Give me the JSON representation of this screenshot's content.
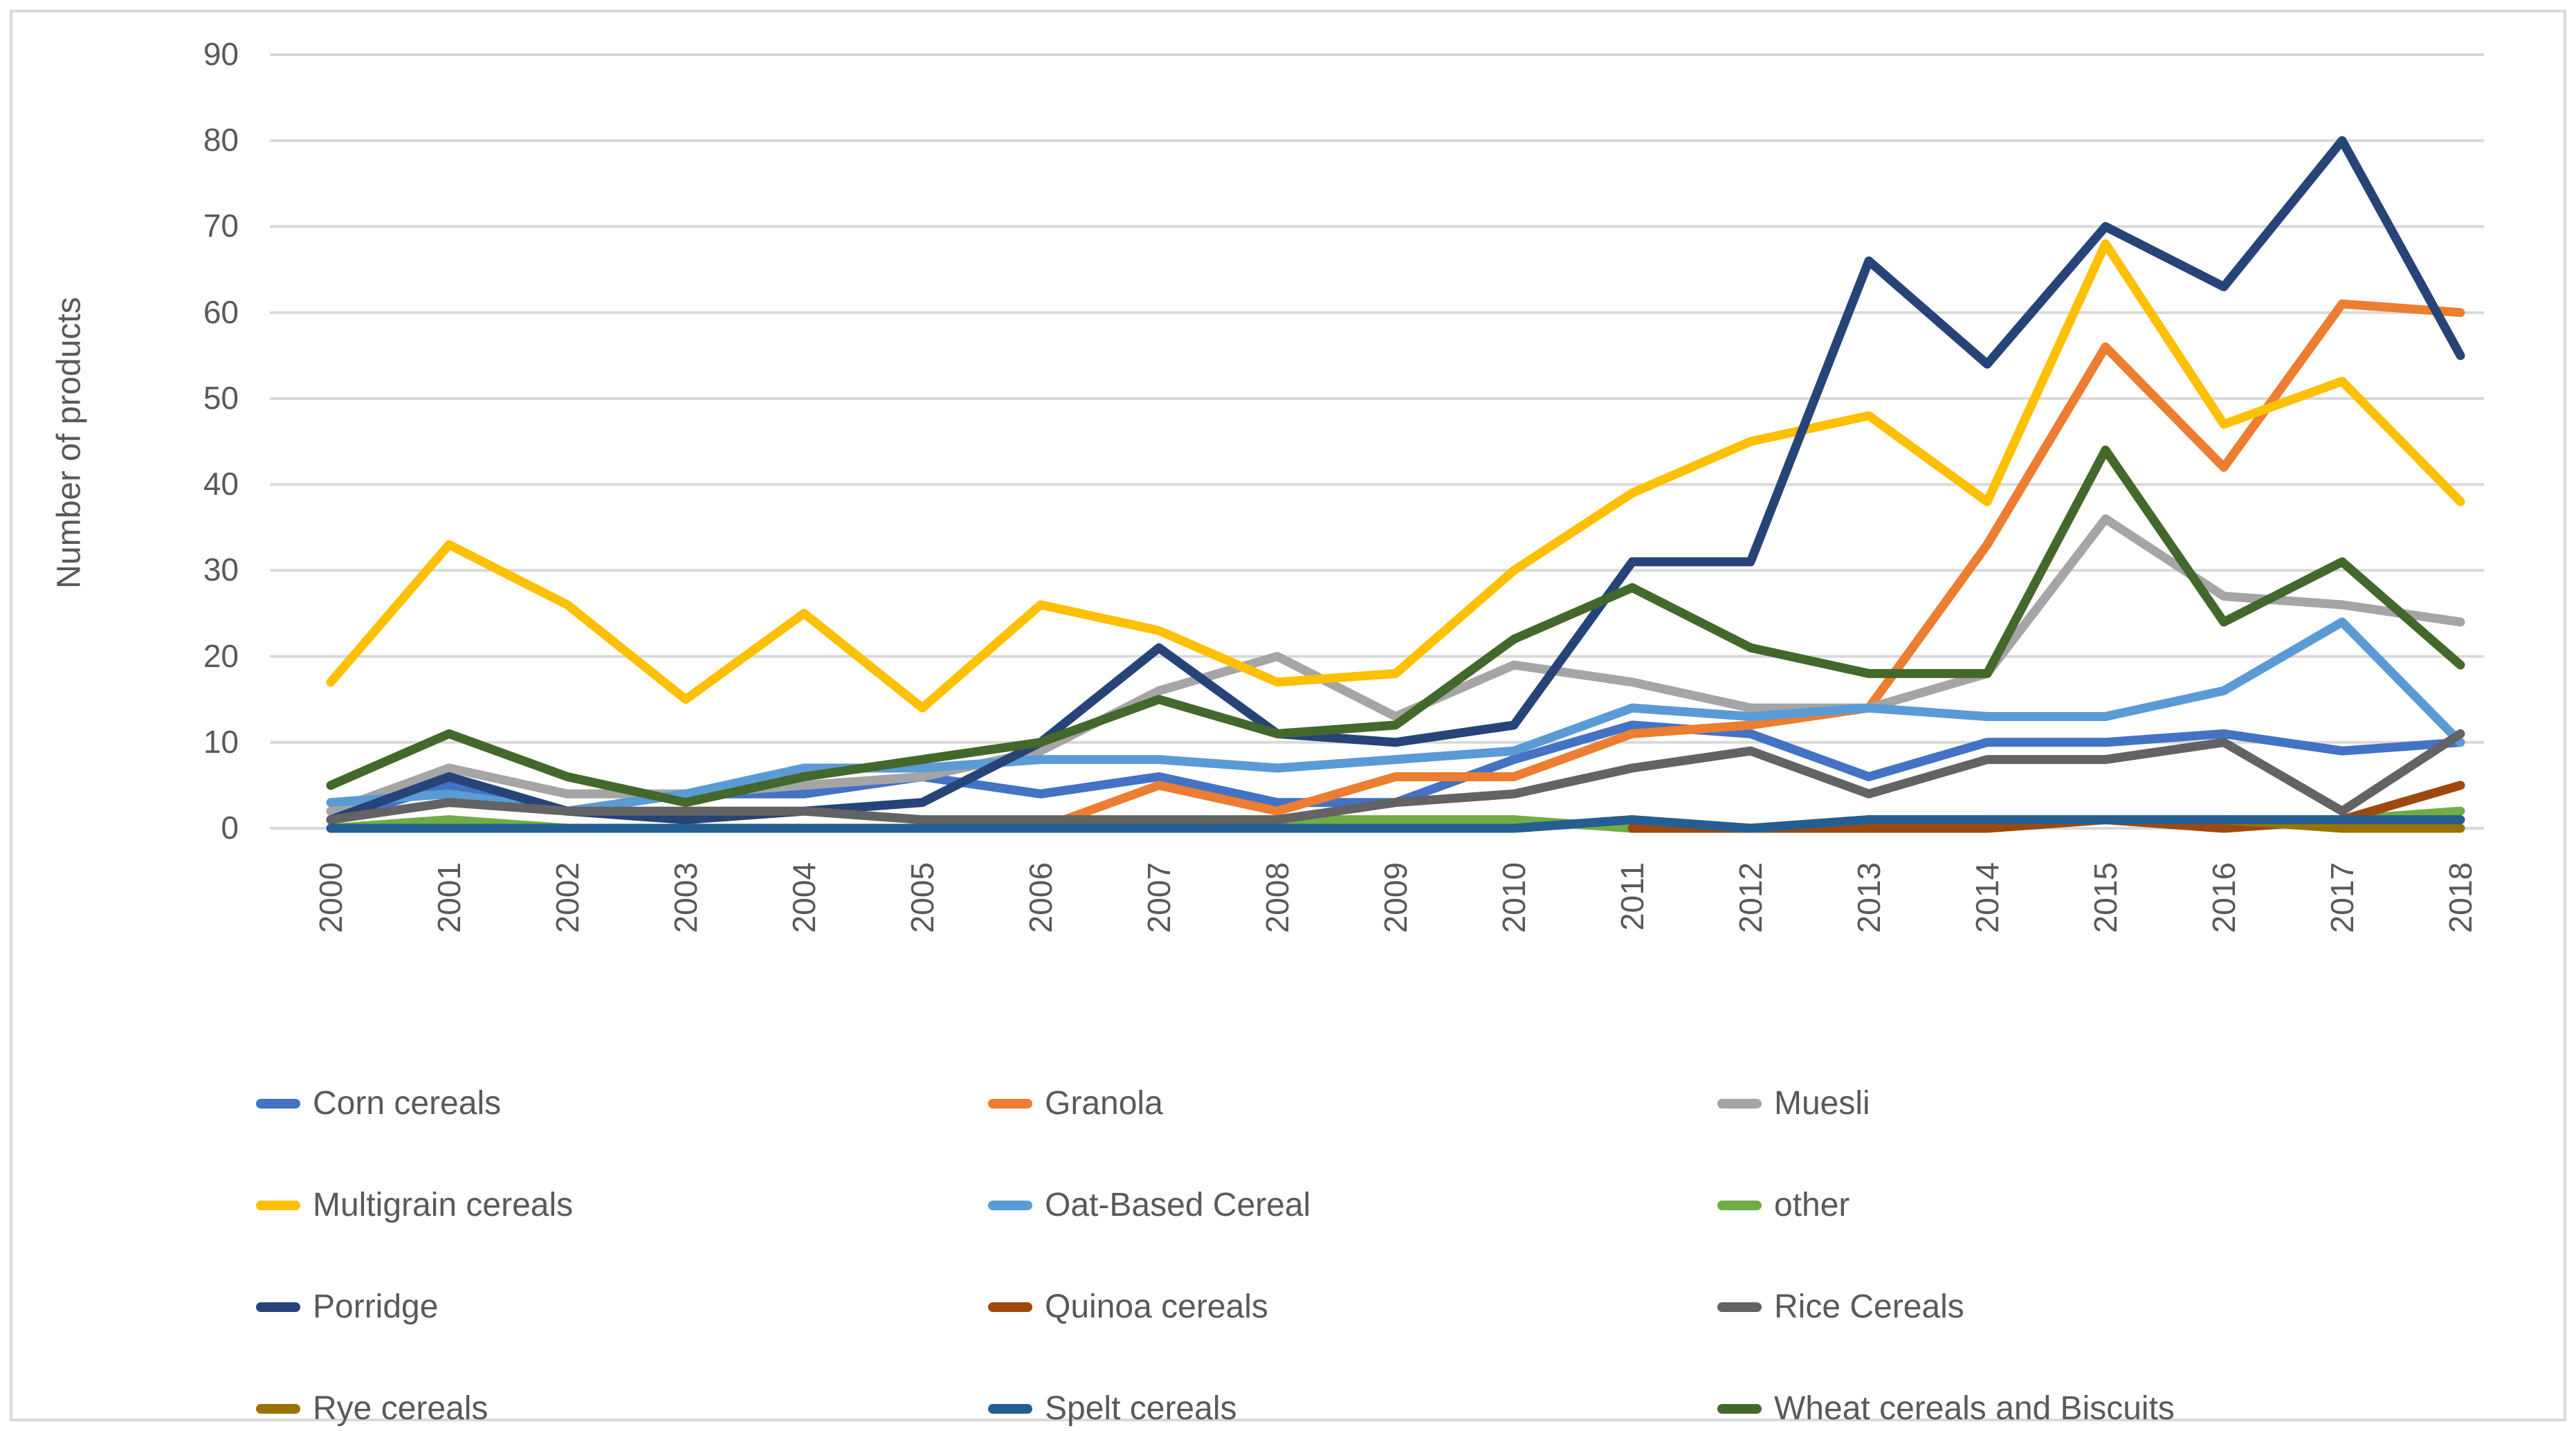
{
  "chart_data": {
    "type": "line",
    "title": "",
    "xlabel": "",
    "ylabel": "Number of products",
    "ylim": [
      0,
      90
    ],
    "ytick_step": 10,
    "grid": "horizontal",
    "legend_position": "bottom",
    "categories": [
      "2000",
      "2001",
      "2002",
      "2003",
      "2004",
      "2005",
      "2006",
      "2007",
      "2008",
      "2009",
      "2010",
      "2011",
      "2012",
      "2013",
      "2014",
      "2015",
      "2016",
      "2017",
      "2018"
    ],
    "series": [
      {
        "name": "Corn cereals",
        "color": "#4472C4",
        "values": [
          1,
          5,
          2,
          4,
          4,
          6,
          4,
          6,
          3,
          3,
          8,
          12,
          11,
          6,
          10,
          10,
          11,
          9,
          10
        ]
      },
      {
        "name": "Granola",
        "color": "#ED7D31",
        "values": [
          null,
          null,
          null,
          null,
          null,
          null,
          0,
          5,
          2,
          6,
          6,
          11,
          12,
          14,
          33,
          56,
          42,
          61,
          60
        ]
      },
      {
        "name": "Muesli",
        "color": "#A5A5A5",
        "values": [
          2,
          7,
          4,
          4,
          5,
          6,
          9,
          16,
          20,
          13,
          19,
          17,
          14,
          14,
          18,
          36,
          27,
          26,
          24
        ]
      },
      {
        "name": "Multigrain cereals",
        "color": "#FFC000",
        "values": [
          17,
          33,
          26,
          15,
          25,
          14,
          26,
          23,
          17,
          18,
          30,
          39,
          45,
          48,
          38,
          68,
          47,
          52,
          38
        ]
      },
      {
        "name": "Oat-Based Cereal",
        "color": "#5B9BD5",
        "values": [
          3,
          4,
          2,
          4,
          7,
          7,
          8,
          8,
          7,
          8,
          9,
          14,
          13,
          14,
          13,
          13,
          16,
          24,
          10
        ]
      },
      {
        "name": "other",
        "color": "#70AD47",
        "values": [
          0,
          1,
          0,
          0,
          0,
          0,
          0,
          0,
          1,
          1,
          1,
          0,
          0,
          0,
          1,
          1,
          1,
          1,
          2
        ]
      },
      {
        "name": "Porridge",
        "color": "#264478",
        "values": [
          1,
          6,
          2,
          1,
          2,
          3,
          10,
          21,
          11,
          10,
          12,
          31,
          31,
          66,
          54,
          70,
          63,
          80,
          55
        ]
      },
      {
        "name": "Quinoa cereals",
        "color": "#9E480E",
        "values": [
          null,
          null,
          null,
          null,
          null,
          null,
          null,
          null,
          null,
          null,
          null,
          0,
          0,
          0,
          0,
          1,
          0,
          1,
          5
        ]
      },
      {
        "name": "Rice Cereals",
        "color": "#636363",
        "values": [
          1,
          3,
          2,
          2,
          2,
          1,
          1,
          1,
          1,
          3,
          4,
          7,
          9,
          4,
          8,
          8,
          10,
          2,
          11
        ]
      },
      {
        "name": "Rye cereals",
        "color": "#997300",
        "values": [
          null,
          null,
          null,
          null,
          null,
          null,
          null,
          null,
          null,
          null,
          0,
          1,
          0,
          1,
          1,
          1,
          1,
          0,
          0
        ]
      },
      {
        "name": "Spelt cereals",
        "color": "#255E91",
        "values": [
          0,
          0,
          0,
          0,
          0,
          0,
          0,
          0,
          0,
          0,
          0,
          1,
          0,
          1,
          1,
          1,
          1,
          1,
          1
        ]
      },
      {
        "name": "Wheat cereals and Biscuits",
        "color": "#43682B",
        "values": [
          5,
          11,
          6,
          3,
          6,
          8,
          10,
          15,
          11,
          12,
          22,
          28,
          21,
          18,
          18,
          44,
          24,
          31,
          19
        ]
      }
    ]
  },
  "colors": {
    "text": "#595959",
    "gridline": "#D9D9D9",
    "frame_border": "#D9D9D9",
    "background": "#FFFFFF"
  }
}
